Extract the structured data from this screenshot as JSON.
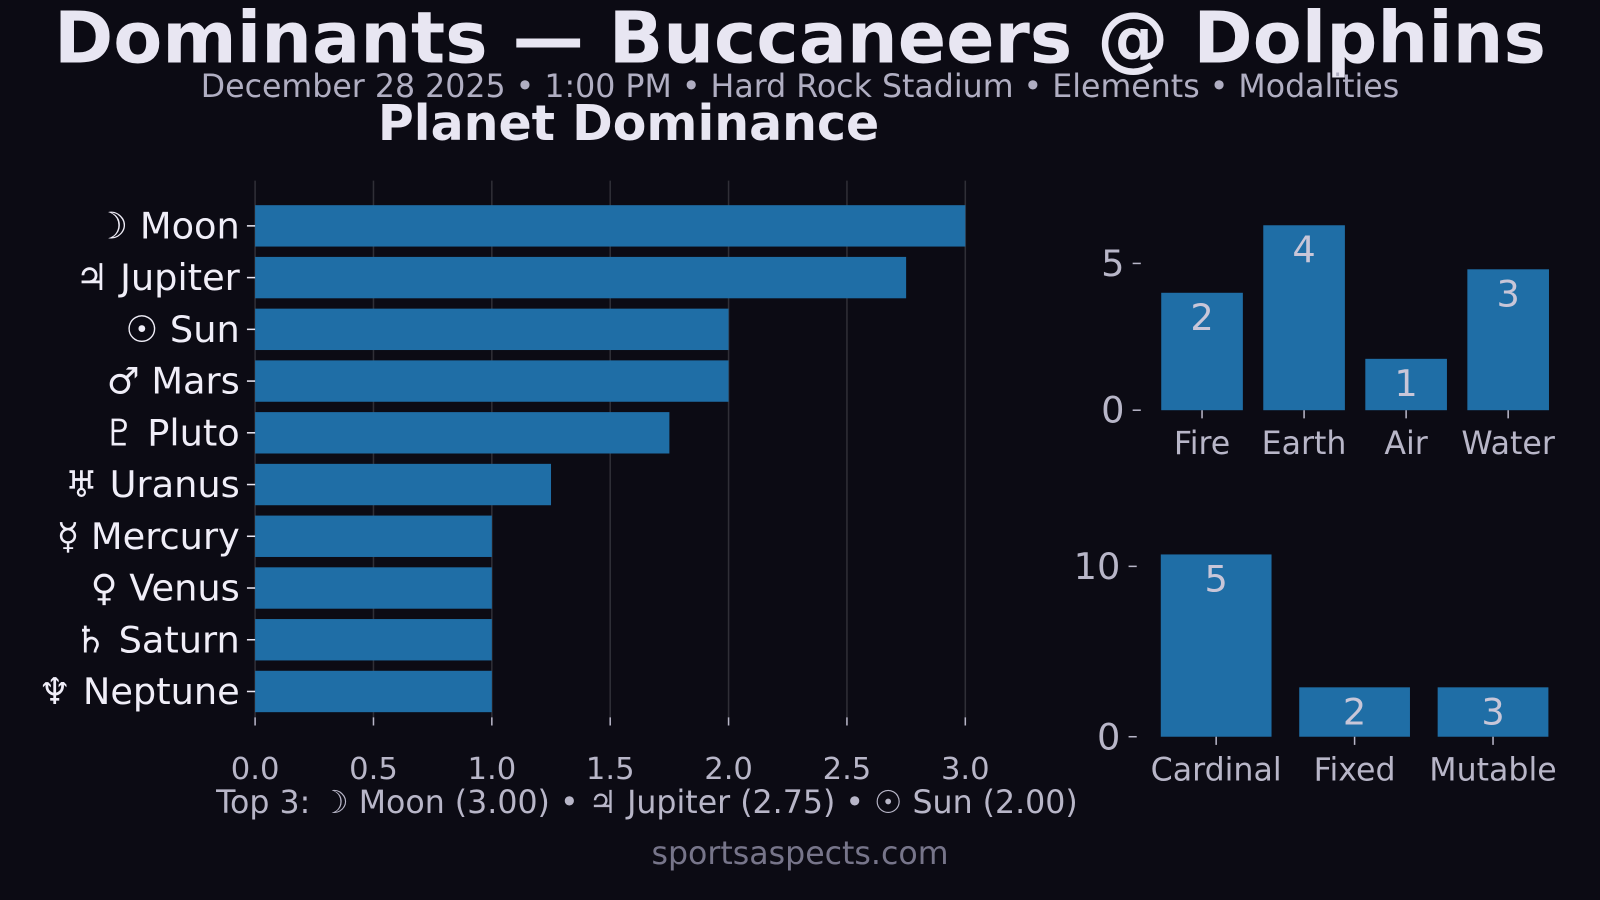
{
  "title": "Dominants — Buccaneers @ Dolphins",
  "subtitle": "December 28 2025 • 1:00 PM • Hard Rock Stadium • Elements • Modalities",
  "footer": "sportsaspects.com",
  "chart_data": [
    {
      "type": "hbar",
      "title": "Planet Dominance",
      "categories": [
        "☽ Moon",
        "♃ Jupiter",
        "☉ Sun",
        "♂ Mars",
        "♇ Pluto",
        "♅ Uranus",
        "☿ Mercury",
        "♀ Venus",
        "♄ Saturn",
        "♆ Neptune"
      ],
      "values": [
        3.0,
        2.75,
        2.0,
        2.0,
        1.75,
        1.25,
        1.0,
        1.0,
        1.0,
        1.0
      ],
      "color": "#1f6ea6",
      "xlim": [
        0,
        3.0
      ],
      "xticks": [
        {
          "value": 0,
          "label": "0.0"
        },
        0.5,
        {
          "value": 1,
          "label": "1.0"
        },
        1.5,
        {
          "value": 2,
          "label": "2.0"
        },
        2.5,
        {
          "value": 3,
          "label": "3.0"
        }
      ],
      "grid": true,
      "annotation": "Top 3:  ☽ Moon (3.00) • ♃ Jupiter (2.75) • ☉ Sun (2.00)"
    },
    {
      "type": "bar",
      "categories": [
        "Fire",
        "Earth",
        "Air",
        "Water"
      ],
      "values": [
        4.0,
        6.3,
        1.75,
        4.8
      ],
      "counts": [
        2,
        4,
        1,
        3
      ],
      "color": "#1f6ea6",
      "ylim": [
        0,
        6.5
      ],
      "yticks": [
        0,
        5
      ],
      "grid": false
    },
    {
      "type": "bar",
      "categories": [
        "Cardinal",
        "Fixed",
        "Mutable"
      ],
      "values": [
        10.7,
        2.9,
        2.9
      ],
      "counts": [
        5,
        2,
        3
      ],
      "color": "#1f6ea6",
      "ylim": [
        0,
        11.2
      ],
      "yticks": [
        0,
        10
      ],
      "grid": false
    }
  ]
}
